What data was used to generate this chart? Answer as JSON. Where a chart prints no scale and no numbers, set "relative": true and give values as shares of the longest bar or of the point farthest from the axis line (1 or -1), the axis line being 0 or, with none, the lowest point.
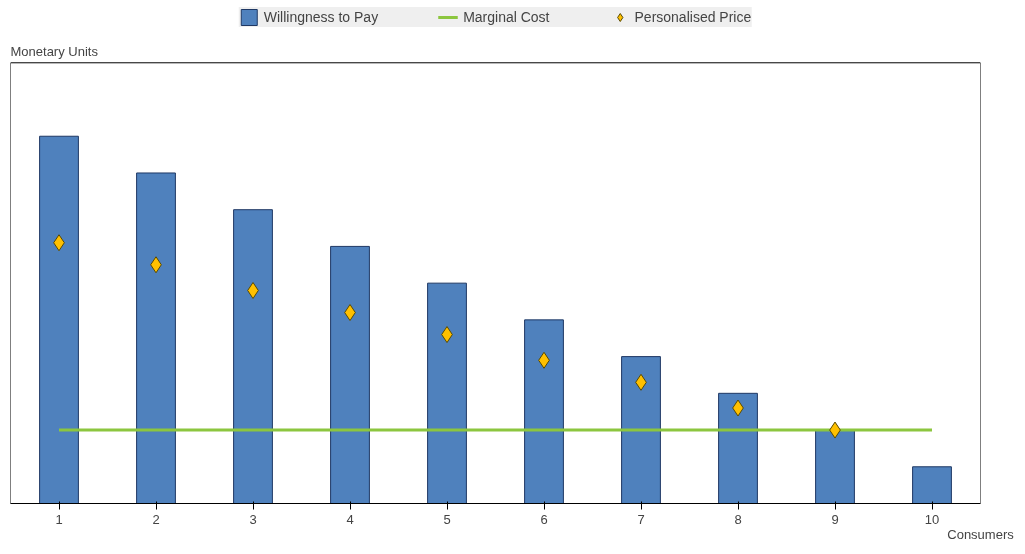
{
  "chart_data": {
    "type": "bar",
    "relative": true,
    "xlabel": "Consumers",
    "annotations": [
      "Monetary Units"
    ],
    "categories": [
      "1",
      "2",
      "3",
      "4",
      "5",
      "6",
      "7",
      "8",
      "9",
      "10"
    ],
    "series": [
      {
        "name": "Willingness to Pay",
        "color": "#4f81bd",
        "values": [
          1,
          0.9,
          0.8,
          0.7,
          0.6,
          0.5,
          0.4,
          0.3,
          0.2,
          0.1
        ]
      },
      {
        "name": "Marginal Cost",
        "type": "line",
        "color": "#8cc63f",
        "values": [
          0.2,
          0.2,
          0.2,
          0.2,
          0.2,
          0.2,
          0.2,
          0.2,
          0.2,
          0.2
        ]
      },
      {
        "name": "Personalised Price",
        "type": "scatter",
        "marker": "diamond",
        "color": "#ffc000",
        "values": [
          0.71,
          0.65,
          0.58,
          0.52,
          0.46,
          0.39,
          0.33,
          0.26,
          0.2,
          null
        ]
      }
    ],
    "legend": "top",
    "grid": false
  }
}
